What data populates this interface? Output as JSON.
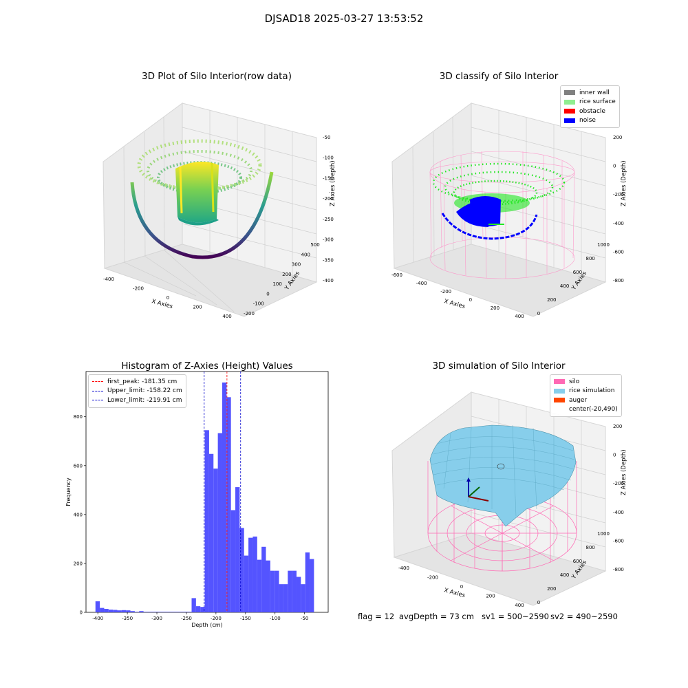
{
  "figure": {
    "suptitle": "DJSAD18 2025-03-27 13:53:52",
    "status": [
      "flag = 12",
      "avgDepth = 73 cm",
      "sv1 = 500~2590",
      "sv2 = 490~2590"
    ]
  },
  "colors": {
    "inner_wall": "#808080",
    "rice_surface": "#90ee90",
    "obstacle": "#ff0000",
    "noise": "#0000ff",
    "silo": "#ff69b4",
    "rice_simulation": "#87ceeb",
    "auger": "#ff4500",
    "hist_bar": "#4b4bff",
    "first_peak_line": "#ff0000",
    "limit_line": "#0000cc"
  },
  "chart_data": [
    {
      "type": "scatter3d",
      "title": "3D Plot of Silo Interior(row data)",
      "xlabel": "X Axies",
      "ylabel": "Y Axies",
      "zlabel": "Z Axies (Depth)",
      "xticks": [
        "-400",
        "-200",
        "0",
        "200",
        "400"
      ],
      "yticks": [
        "-200",
        "-100",
        "0",
        "100",
        "200",
        "300",
        "400",
        "500"
      ],
      "zticks": [
        "-50",
        "-100",
        "-150",
        "-200",
        "-250",
        "-300",
        "-350",
        "-400"
      ],
      "xlim": [
        -500,
        500
      ],
      "ylim": [
        -200,
        500
      ],
      "zlim": [
        -420,
        -30
      ]
    },
    {
      "type": "scatter3d",
      "title": "3D classify of Silo Interior",
      "xlabel": "X Axies",
      "ylabel": "Y Axies",
      "zlabel": "Z Axies (Depth)",
      "xticks": [
        "-600",
        "-400",
        "-200",
        "0",
        "200",
        "400"
      ],
      "yticks": [
        "0",
        "200",
        "400",
        "600",
        "800",
        "1000"
      ],
      "zticks": [
        "200",
        "0",
        "-200",
        "-400",
        "-600",
        "-800"
      ],
      "legend": [
        "inner wall",
        "rice surface",
        "obstacle",
        "noise"
      ],
      "legend_position": "upper right"
    },
    {
      "type": "bar",
      "title": "Histogram of Z-Axies (Height) Values",
      "xlabel": "Depth (cm)",
      "ylabel": "Frequency",
      "xticks": [
        -400,
        -350,
        -300,
        -250,
        -200,
        -150,
        -100,
        -50
      ],
      "yticks": [
        0,
        200,
        400,
        600,
        800
      ],
      "xlim": [
        -420,
        -10
      ],
      "ylim": [
        0,
        985
      ],
      "bin_width": 7.4,
      "bins": [
        {
          "x": -404,
          "v": 45
        },
        {
          "x": -396.6,
          "v": 18
        },
        {
          "x": -389.2,
          "v": 14
        },
        {
          "x": -381.8,
          "v": 11
        },
        {
          "x": -374.4,
          "v": 10
        },
        {
          "x": -367,
          "v": 8
        },
        {
          "x": -359.6,
          "v": 9
        },
        {
          "x": -352.2,
          "v": 8
        },
        {
          "x": -344.8,
          "v": 5
        },
        {
          "x": -337.4,
          "v": 2
        },
        {
          "x": -330,
          "v": 5
        },
        {
          "x": -322.6,
          "v": 2
        },
        {
          "x": -315.2,
          "v": 2
        },
        {
          "x": -307.8,
          "v": 2
        },
        {
          "x": -300.4,
          "v": 2
        },
        {
          "x": -293,
          "v": 2
        },
        {
          "x": -285.6,
          "v": 2
        },
        {
          "x": -278.2,
          "v": 2
        },
        {
          "x": -270.8,
          "v": 2
        },
        {
          "x": -263.4,
          "v": 2
        },
        {
          "x": -256,
          "v": 2
        },
        {
          "x": -248.6,
          "v": 2
        },
        {
          "x": -241.2,
          "v": 58
        },
        {
          "x": -233.8,
          "v": 25
        },
        {
          "x": -226.4,
          "v": 22
        },
        {
          "x": -219,
          "v": 745
        },
        {
          "x": -211.6,
          "v": 648
        },
        {
          "x": -204.2,
          "v": 588
        },
        {
          "x": -196.8,
          "v": 733
        },
        {
          "x": -189.4,
          "v": 940
        },
        {
          "x": -182,
          "v": 880
        },
        {
          "x": -174.6,
          "v": 418
        },
        {
          "x": -167.2,
          "v": 512
        },
        {
          "x": -159.8,
          "v": 345
        },
        {
          "x": -152.4,
          "v": 232
        },
        {
          "x": -145,
          "v": 305
        },
        {
          "x": -137.6,
          "v": 310
        },
        {
          "x": -130.2,
          "v": 215
        },
        {
          "x": -122.8,
          "v": 268
        },
        {
          "x": -115.4,
          "v": 212
        },
        {
          "x": -108,
          "v": 170
        },
        {
          "x": -100.6,
          "v": 170
        },
        {
          "x": -93.2,
          "v": 115
        },
        {
          "x": -85.8,
          "v": 115
        },
        {
          "x": -78.4,
          "v": 170
        },
        {
          "x": -71,
          "v": 170
        },
        {
          "x": -63.6,
          "v": 145
        },
        {
          "x": -56.2,
          "v": 115
        },
        {
          "x": -48.8,
          "v": 245
        },
        {
          "x": -41.4,
          "v": 218
        }
      ],
      "vlines": [
        {
          "label": "first_peak: -181.35 cm",
          "x": -181.35,
          "color": "#ff0000"
        },
        {
          "label": "Upper_limit: -158.22 cm",
          "x": -158.22,
          "color": "#0000cc"
        },
        {
          "label": "Lower_limit: -219.91 cm",
          "x": -219.91,
          "color": "#0000cc"
        }
      ],
      "legend_position": "upper left"
    },
    {
      "type": "surface3d",
      "title": "3D simulation of Silo Interior",
      "xlabel": "X Axies",
      "ylabel": "Y Axies",
      "zlabel": "Z Axies (Depth)",
      "xticks": [
        "-400",
        "-200",
        "0",
        "200",
        "400"
      ],
      "yticks": [
        "0",
        "200",
        "400",
        "600",
        "800",
        "1000"
      ],
      "zticks": [
        "200",
        "0",
        "-200",
        "-400",
        "-600",
        "-800"
      ],
      "legend": [
        "silo",
        "rice simulation",
        "auger",
        "center(-20,490)"
      ],
      "legend_position": "upper right"
    }
  ]
}
